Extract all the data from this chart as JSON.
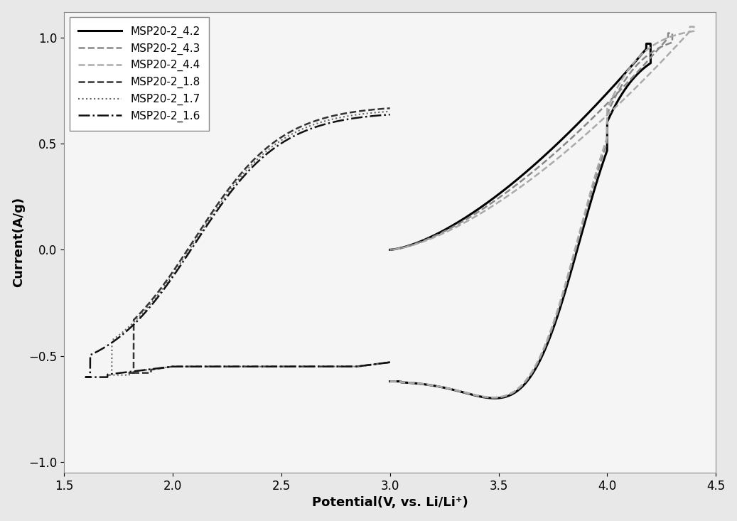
{
  "xlabel": "Potential(V, vs. Li/Li⁺)",
  "ylabel": "Current(A/g)",
  "xlim": [
    1.5,
    4.5
  ],
  "ylim": [
    -1.05,
    1.12
  ],
  "xticks": [
    1.5,
    2.0,
    2.5,
    3.0,
    3.5,
    4.0,
    4.5
  ],
  "yticks": [
    -1.0,
    -0.5,
    0.0,
    0.5,
    1.0
  ],
  "bg_color": "#e8e8e8",
  "ax_bg_color": "#f5f5f5",
  "legend_labels": [
    "MSP20-2_4.2",
    "MSP20-2_4.3",
    "MSP20-2_4.4",
    "MSP20-2_1.8",
    "MSP20-2_1.7",
    "MSP20-2_1.6"
  ],
  "legend_line_colors": [
    "#000000",
    "#888888",
    "#aaaaaa",
    "#333333",
    "#666666",
    "#111111"
  ],
  "legend_line_styles": [
    "-",
    "--",
    "--",
    "--",
    ":",
    "-."
  ],
  "legend_line_widths": [
    2.2,
    1.8,
    1.8,
    1.8,
    1.5,
    1.8
  ],
  "legend_fontsize": 11,
  "axis_fontsize": 13,
  "tick_fontsize": 12
}
